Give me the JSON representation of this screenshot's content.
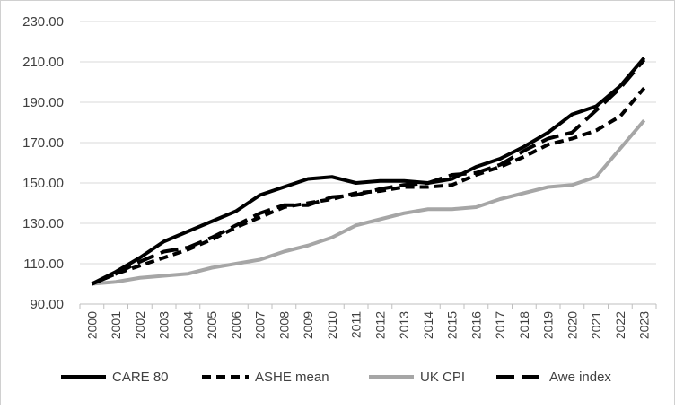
{
  "chart_data": {
    "type": "line",
    "title": "",
    "xlabel": "",
    "ylabel": "",
    "ylim": [
      90,
      230
    ],
    "yticks": [
      "90.00",
      "110.00",
      "130.00",
      "150.00",
      "170.00",
      "190.00",
      "210.00",
      "230.00"
    ],
    "grid": true,
    "legend_position": "bottom",
    "categories": [
      "2000",
      "2001",
      "2002",
      "2003",
      "2004",
      "2005",
      "2006",
      "2007",
      "2008",
      "2009",
      "2010",
      "2011",
      "2012",
      "2013",
      "2014",
      "2015",
      "2016",
      "2017",
      "2018",
      "2019",
      "2020",
      "2021",
      "2022",
      "2023"
    ],
    "series": [
      {
        "name": "CARE 80",
        "style": "solid",
        "color": "#000000",
        "values": [
          100,
          106,
          113,
          121,
          126,
          131,
          136,
          144,
          148,
          152,
          153,
          150,
          151,
          151,
          150,
          152,
          158,
          162,
          168,
          175,
          184,
          188,
          198,
          212
        ]
      },
      {
        "name": "ASHE mean",
        "style": "dashed",
        "color": "#000000",
        "values": [
          100,
          105,
          109,
          113,
          117,
          122,
          128,
          133,
          138,
          140,
          142,
          145,
          146,
          148,
          148,
          149,
          154,
          158,
          163,
          169,
          172,
          176,
          183,
          197
        ]
      },
      {
        "name": "UK CPI",
        "style": "solid",
        "color": "#a6a6a6",
        "values": [
          100,
          101,
          103,
          104,
          105,
          108,
          110,
          112,
          116,
          119,
          123,
          129,
          132,
          135,
          137,
          137,
          138,
          142,
          145,
          148,
          149,
          153,
          167,
          181
        ]
      },
      {
        "name": "Awe index",
        "style": "long-dashed",
        "color": "#000000",
        "values": [
          100,
          105,
          111,
          116,
          118,
          123,
          129,
          135,
          139,
          139,
          143,
          144,
          147,
          149,
          150,
          154,
          155,
          159,
          166,
          172,
          175,
          186,
          197,
          211
        ]
      }
    ]
  }
}
